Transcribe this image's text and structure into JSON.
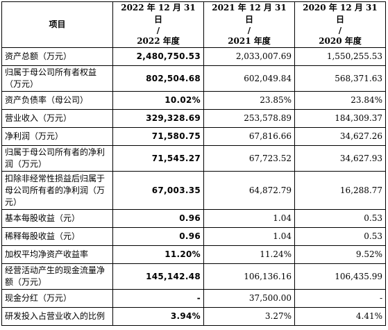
{
  "header": {
    "item": "项目",
    "columns": [
      {
        "line1": "2022 年 12 月 31 日",
        "line2": "/",
        "line3": "2022 年度"
      },
      {
        "line1": "2021 年 12 月 31 日",
        "line2": "/",
        "line3": "2021 年度"
      },
      {
        "line1": "2020 年 12 月 31 日",
        "line2": "/",
        "line3": "2020 年度"
      }
    ]
  },
  "rows": [
    {
      "item": "资产总额（万元）",
      "v2022": "2,480,750.53",
      "v2021": "2,033,007.69",
      "v2020": "1,550,255.53"
    },
    {
      "item": "归属于母公司所有者权益（万元）",
      "v2022": "802,504.68",
      "v2021": "602,049.84",
      "v2020": "568,371.63"
    },
    {
      "item": "资产负债率（母公司）",
      "v2022": "10.02%",
      "v2021": "23.85%",
      "v2020": "23.84%"
    },
    {
      "item": "营业收入（万元）",
      "v2022": "329,328.69",
      "v2021": "253,578.89",
      "v2020": "184,309.37"
    },
    {
      "item": "净利润（万元）",
      "v2022": "71,580.75",
      "v2021": "67,816.66",
      "v2020": "34,627.26"
    },
    {
      "item": "归属于母公司所有者的净利润（万元）",
      "v2022": "71,545.27",
      "v2021": "67,723.52",
      "v2020": "34,627.93"
    },
    {
      "item": "扣除非经常性损益后归属于母公司所有者的净利润（万元）",
      "v2022": "67,003.35",
      "v2021": "64,872.79",
      "v2020": "16,288.77"
    },
    {
      "item": "基本每股收益（元）",
      "v2022": "0.96",
      "v2021": "1.04",
      "v2020": "0.53"
    },
    {
      "item": "稀释每股收益（元）",
      "v2022": "0.96",
      "v2021": "1.04",
      "v2020": "0.53"
    },
    {
      "item": "加权平均净资产收益率",
      "v2022": "11.20%",
      "v2021": "11.24%",
      "v2020": "9.52%"
    },
    {
      "item": "经营活动产生的现金流量净额（万元）",
      "v2022": "145,142.48",
      "v2021": "106,136.16",
      "v2020": "106,435.99"
    },
    {
      "item": "现金分红（万元）",
      "v2022": "-",
      "v2021": "37,500.00",
      "v2020": "-"
    },
    {
      "item": "研发投入占营业收入的比例",
      "v2022": "3.94%",
      "v2021": "3.27%",
      "v2020": "4.41%"
    }
  ]
}
